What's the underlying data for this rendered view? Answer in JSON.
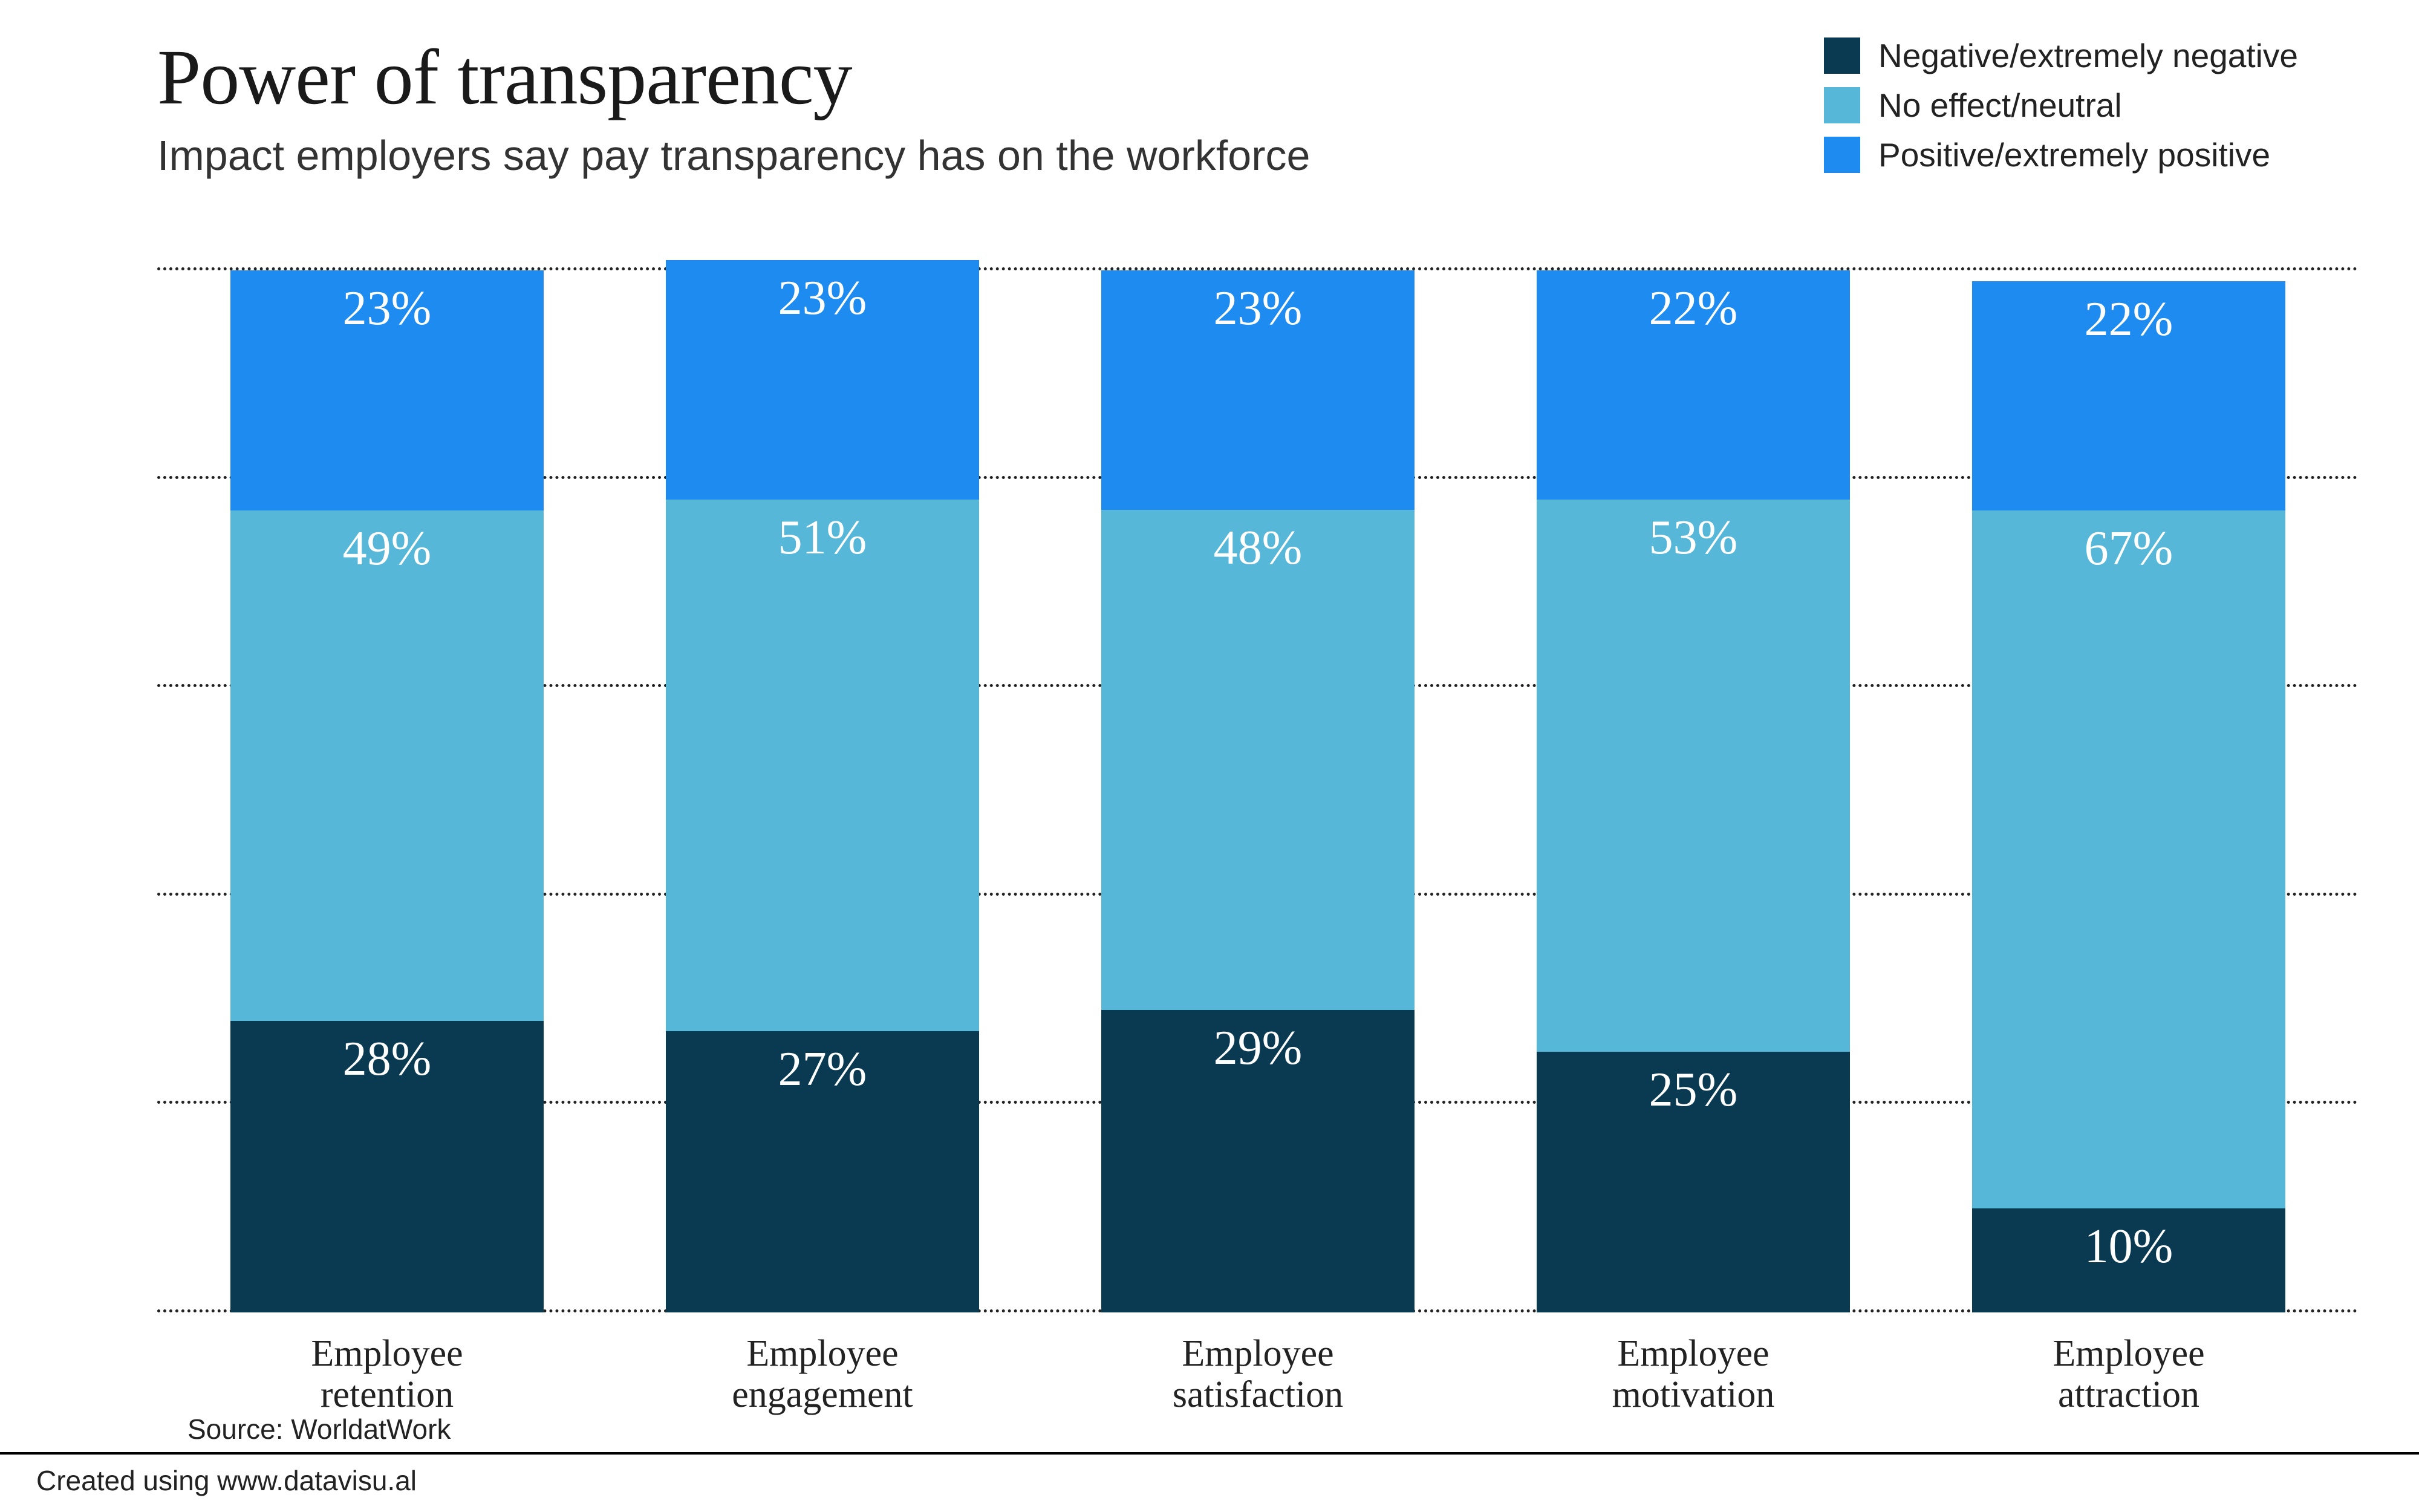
{
  "title": "Power of transparency",
  "subtitle": "Impact employers say pay transparency has on the workforce",
  "source_label": "Source: WorldatWork",
  "credit": "Created using www.datavisu.al",
  "chart": {
    "type": "stacked-bar",
    "y_max": 101,
    "gridline_step": 20,
    "gridline_count": 6,
    "gridline_color": "#222222",
    "background_color": "#ffffff",
    "bar_width_pct": 80,
    "value_label_fontsize": 80,
    "value_label_color": "#ffffff",
    "title_fontsize": 130,
    "subtitle_fontsize": 70,
    "xlabel_fontsize": 62,
    "legend_fontsize": 55,
    "series": [
      {
        "key": "negative",
        "label": "Negative/extremely negative",
        "color": "#0a3a52"
      },
      {
        "key": "neutral",
        "label": "No effect/neutral",
        "color": "#56b7d8"
      },
      {
        "key": "positive",
        "label": "Positive/extremely positive",
        "color": "#1e8bf0"
      }
    ],
    "categories": [
      {
        "label_line1": "Employee",
        "label_line2": "retention",
        "values": {
          "negative": 28,
          "neutral": 49,
          "positive": 23
        }
      },
      {
        "label_line1": "Employee",
        "label_line2": "engagement",
        "values": {
          "negative": 27,
          "neutral": 51,
          "positive": 23
        }
      },
      {
        "label_line1": "Employee",
        "label_line2": "satisfaction",
        "values": {
          "negative": 29,
          "neutral": 48,
          "positive": 23
        }
      },
      {
        "label_line1": "Employee",
        "label_line2": "motivation",
        "values": {
          "negative": 25,
          "neutral": 53,
          "positive": 22
        }
      },
      {
        "label_line1": "Employee",
        "label_line2": "attraction",
        "values": {
          "negative": 10,
          "neutral": 67,
          "positive": 22
        }
      }
    ]
  }
}
